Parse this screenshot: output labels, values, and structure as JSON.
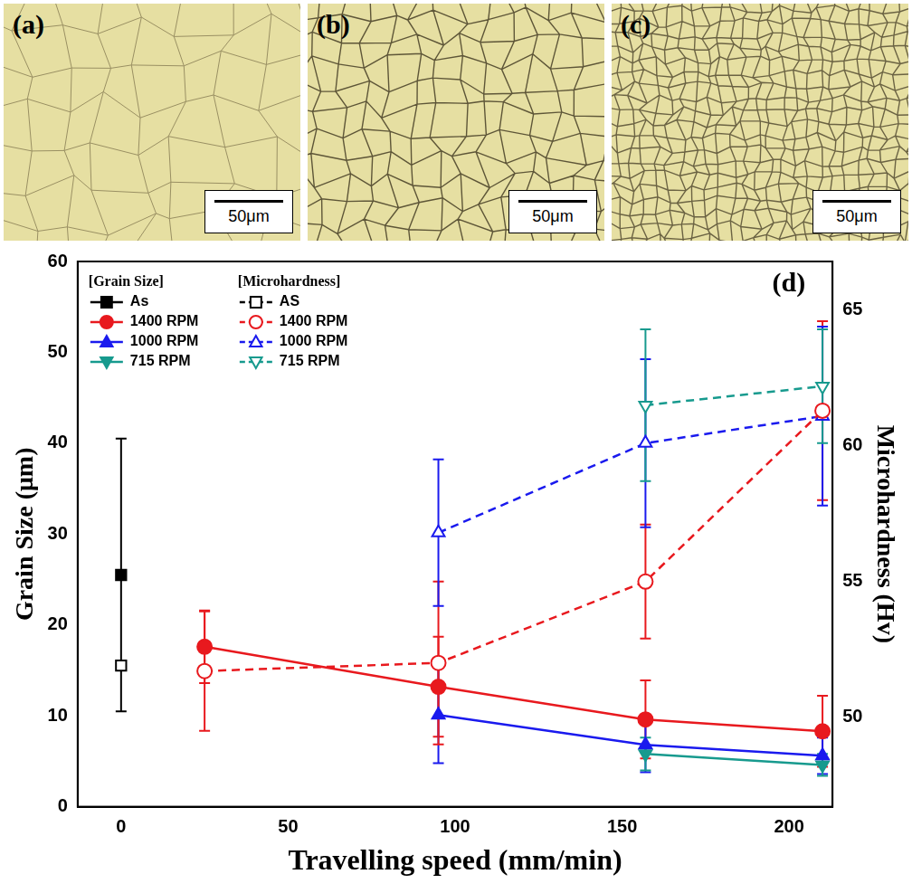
{
  "panels": [
    {
      "label": "(a)",
      "scale_bar": "50μm"
    },
    {
      "label": "(b)",
      "scale_bar": "50μm"
    },
    {
      "label": "(c)",
      "scale_bar": "50μm"
    }
  ],
  "chart_data": {
    "type": "line",
    "panel_label": "(d)",
    "x_label": "Travelling speed (mm/min)",
    "y_label": "Grain Size (μm)",
    "y2_label": "Microhardness (Hv)",
    "xlim": [
      -13,
      213
    ],
    "xticks": [
      0,
      50,
      100,
      150,
      200
    ],
    "ylim": [
      0,
      60
    ],
    "yticks": [
      0,
      10,
      20,
      30,
      40,
      50,
      60
    ],
    "y2lim": [
      46.7,
      66.8
    ],
    "y2ticks": [
      50,
      55,
      60,
      65
    ],
    "grid": false,
    "legend": "upper left",
    "legend_groups": [
      "[Grain Size]",
      "[Microhardness]"
    ],
    "series": [
      {
        "name": "As",
        "color": "#000000",
        "x": [
          0
        ],
        "values": [
          25.5
        ],
        "errors": [
          15.0
        ],
        "marker": "square",
        "line_style": "solid"
      },
      {
        "name": "1400 RPM",
        "color": "#e8191e",
        "x": [
          25,
          95,
          157,
          210
        ],
        "values": [
          17.6,
          13.2,
          9.6,
          8.3
        ],
        "errors": [
          4.0,
          5.5,
          4.3,
          3.9
        ],
        "marker": "circle",
        "line_style": "solid"
      },
      {
        "name": "1000 RPM",
        "color": "#1a1aee",
        "x": [
          95,
          157,
          210
        ],
        "values": [
          10.1,
          6.8,
          5.6
        ],
        "errors": [
          5.3,
          3.0,
          2.0
        ],
        "marker": "triangle",
        "line_style": "solid"
      },
      {
        "name": "715 RPM",
        "color": "#179a8e",
        "x": [
          157,
          210
        ],
        "values": [
          5.8,
          4.6
        ],
        "errors": [
          1.8,
          1.2
        ],
        "marker": "triangle_down",
        "line_style": "solid"
      },
      {
        "name": "AS",
        "color": "#000000",
        "x": [
          0
        ],
        "values": [
          51.9
        ],
        "errors": [
          0
        ],
        "marker": "open_square",
        "line_style": "dashed",
        "axis": "y2"
      },
      {
        "name": "1400 RPM",
        "color": "#e8191e",
        "x": [
          25,
          95,
          157,
          210
        ],
        "values": [
          51.7,
          52.0,
          55.0,
          61.3
        ],
        "errors": [
          2.2,
          3.0,
          2.1,
          3.3
        ],
        "marker": "open_circle",
        "line_style": "dashed",
        "axis": "y2"
      },
      {
        "name": "1000 RPM",
        "color": "#1a1aee",
        "x": [
          95,
          157,
          210
        ],
        "values": [
          56.8,
          60.1,
          61.1
        ],
        "errors": [
          2.7,
          3.1,
          3.3
        ],
        "marker": "open_triangle",
        "line_style": "dashed",
        "axis": "y2"
      },
      {
        "name": "715 RPM",
        "color": "#179a8e",
        "x": [
          157,
          210
        ],
        "values": [
          61.5,
          62.2
        ],
        "errors": [
          2.8,
          2.1
        ],
        "marker": "open_triangle_down",
        "line_style": "dashed",
        "axis": "y2"
      }
    ]
  }
}
